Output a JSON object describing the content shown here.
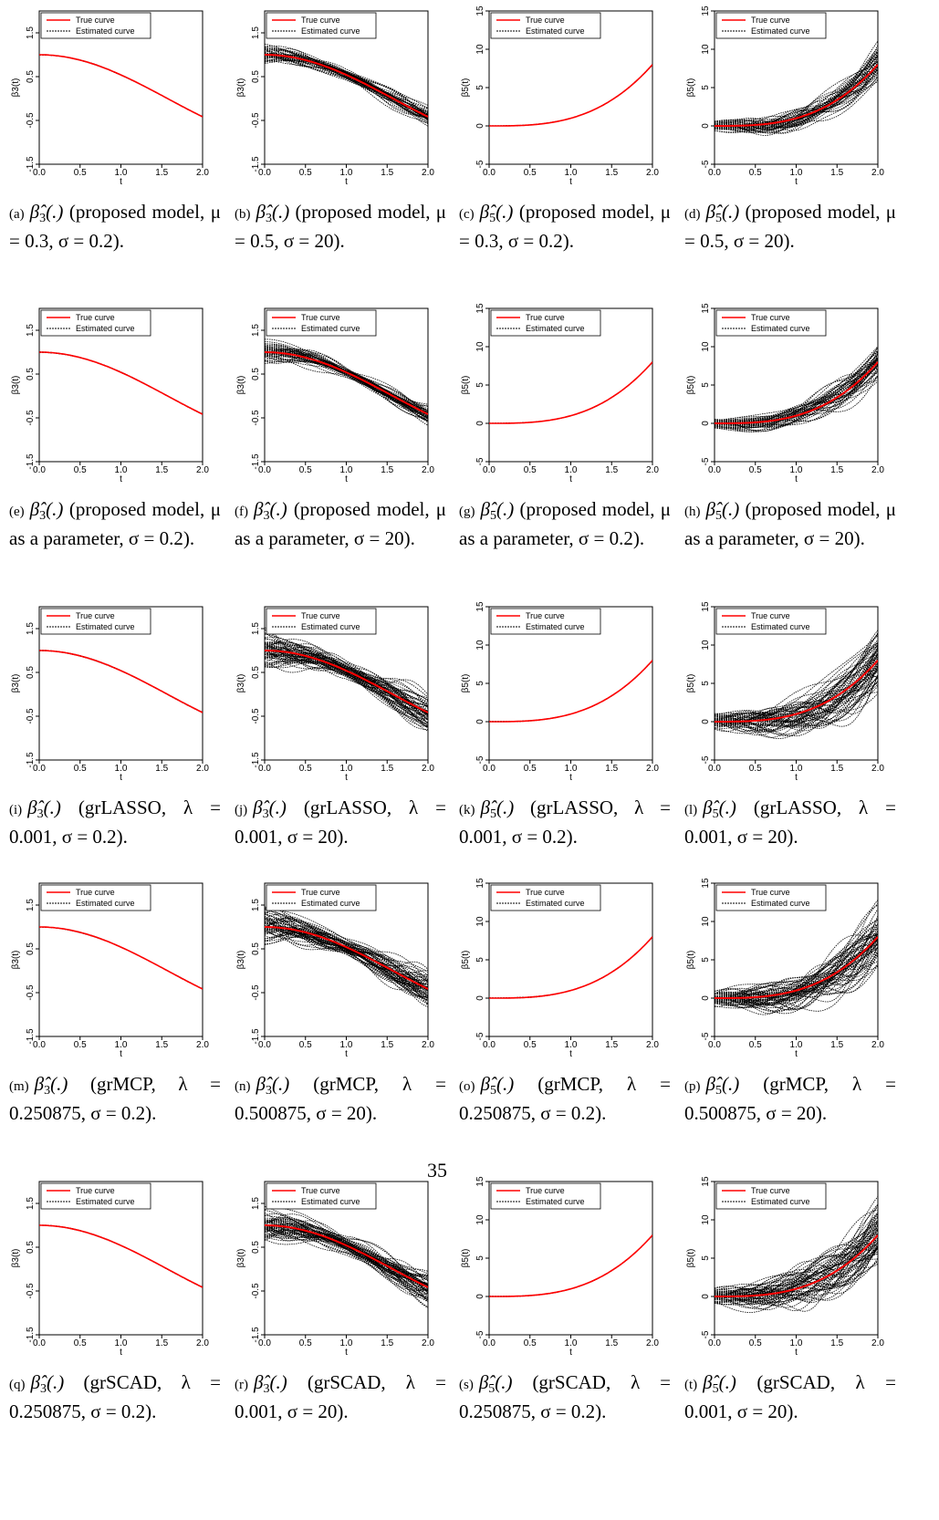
{
  "page_number": "35",
  "legend": {
    "true_label": "True curve",
    "est_label": "Estimated curve",
    "true_color": "#ff0000",
    "est_color": "#000000"
  },
  "axes": {
    "xlabel": "t",
    "xticks": [
      "0.0",
      "0.5",
      "1.0",
      "1.5",
      "2.0"
    ],
    "beta3_ylabel": "β3(t)",
    "beta3_yticks": [
      "-1.5",
      "-0.5",
      "0.5",
      "1.5"
    ],
    "beta5_ylabel": "β5(t)",
    "beta5_yticks": [
      "-5",
      "0",
      "5",
      "10",
      "15"
    ]
  },
  "panels": [
    {
      "label": "(a)",
      "beta": "3",
      "rest": "(proposed model, μ = 0.3, σ = 0.2)."
    },
    {
      "label": "(b)",
      "beta": "3",
      "rest": "(proposed model, μ = 0.5, σ = 20)."
    },
    {
      "label": "(c)",
      "beta": "5",
      "rest": "(proposed model, μ = 0.3, σ = 0.2)."
    },
    {
      "label": "(d)",
      "beta": "5",
      "rest": "(proposed model, μ = 0.5, σ = 20)."
    },
    {
      "label": "(e)",
      "beta": "3",
      "rest": "(proposed model, μ as a parameter, σ = 0.2)."
    },
    {
      "label": "(f)",
      "beta": "3",
      "rest": "(proposed model, μ as a parameter, σ = 20)."
    },
    {
      "label": "(g)",
      "beta": "5",
      "rest": "(proposed model, μ as a parameter, σ = 0.2)."
    },
    {
      "label": "(h)",
      "beta": "5",
      "rest": "(proposed model, μ as a parameter, σ = 20)."
    },
    {
      "label": "(i)",
      "beta": "3",
      "rest": "(grLASSO, λ = 0.001, σ = 0.2)."
    },
    {
      "label": "(j)",
      "beta": "3",
      "rest": "(grLASSO, λ = 0.001, σ = 20)."
    },
    {
      "label": "(k)",
      "beta": "5",
      "rest": "(grLASSO, λ = 0.001, σ = 0.2)."
    },
    {
      "label": "(l)",
      "beta": "5",
      "rest": "(grLASSO, λ = 0.001, σ = 20)."
    },
    {
      "label": "(m)",
      "beta": "3",
      "rest": "(grMCP, λ = 0.250875, σ = 0.2)."
    },
    {
      "label": "(n)",
      "beta": "3",
      "rest": "(grMCP, λ = 0.500875, σ = 20)."
    },
    {
      "label": "(o)",
      "beta": "5",
      "rest": "(grMCP, λ = 0.250875, σ = 0.2)."
    },
    {
      "label": "(p)",
      "beta": "5",
      "rest": "(grMCP, λ = 0.500875, σ = 20)."
    },
    {
      "label": "(q)",
      "beta": "3",
      "rest": "(grSCAD, λ = 0.250875, σ = 0.2)."
    },
    {
      "label": "(r)",
      "beta": "3",
      "rest": "(grSCAD, λ = 0.001, σ = 20)."
    },
    {
      "label": "(s)",
      "beta": "5",
      "rest": "(grSCAD, λ = 0.250875, σ = 0.2)."
    },
    {
      "label": "(t)",
      "beta": "5",
      "rest": "(grSCAD, λ = 0.001, σ = 20)."
    }
  ],
  "chart_data": [
    {
      "type": "line",
      "title": "",
      "xlabel": "t",
      "ylabel": "β3(t)",
      "xlim": [
        0,
        2
      ],
      "ylim": [
        -1.5,
        2.0
      ],
      "true_function": "cos(t)",
      "estimate_spread": "small",
      "series": [
        {
          "name": "True curve",
          "x": [
            0,
            0.25,
            0.5,
            0.75,
            1.0,
            1.25,
            1.5,
            1.75,
            2.0
          ],
          "values": [
            1.0,
            0.97,
            0.88,
            0.73,
            0.54,
            0.32,
            0.07,
            -0.18,
            -0.42
          ]
        },
        {
          "name": "Estimated curve"
        }
      ]
    },
    {
      "type": "line",
      "title": "",
      "xlabel": "t",
      "ylabel": "β3(t)",
      "xlim": [
        0,
        2
      ],
      "ylim": [
        -1.5,
        2.0
      ],
      "true_function": "cos(t)",
      "estimate_spread": "medium",
      "series": [
        {
          "name": "True curve"
        },
        {
          "name": "Estimated curve"
        }
      ]
    },
    {
      "type": "line",
      "title": "",
      "xlabel": "t",
      "ylabel": "β5(t)",
      "xlim": [
        0,
        2
      ],
      "ylim": [
        -5,
        15
      ],
      "true_function": "t^3",
      "estimate_spread": "small",
      "series": [
        {
          "name": "True curve",
          "x": [
            0,
            0.5,
            1.0,
            1.5,
            2.0
          ],
          "values": [
            0,
            0.125,
            1,
            3.375,
            8
          ]
        },
        {
          "name": "Estimated curve"
        }
      ]
    },
    {
      "type": "line",
      "title": "",
      "xlabel": "t",
      "ylabel": "β5(t)",
      "xlim": [
        0,
        2
      ],
      "ylim": [
        -5,
        15
      ],
      "true_function": "t^3",
      "estimate_spread": "medium",
      "series": [
        {
          "name": "True curve"
        },
        {
          "name": "Estimated curve"
        }
      ]
    },
    {
      "type": "line",
      "title": "",
      "xlabel": "t",
      "ylabel": "β3(t)",
      "xlim": [
        0,
        2
      ],
      "ylim": [
        -1.5,
        2.0
      ],
      "true_function": "cos(t)",
      "estimate_spread": "small",
      "series": [
        {
          "name": "True curve"
        },
        {
          "name": "Estimated curve"
        }
      ]
    },
    {
      "type": "line",
      "title": "",
      "xlabel": "t",
      "ylabel": "β3(t)",
      "xlim": [
        0,
        2
      ],
      "ylim": [
        -1.5,
        2.0
      ],
      "true_function": "cos(t)",
      "estimate_spread": "medium",
      "series": [
        {
          "name": "True curve"
        },
        {
          "name": "Estimated curve"
        }
      ]
    },
    {
      "type": "line",
      "title": "",
      "xlabel": "t",
      "ylabel": "β5(t)",
      "xlim": [
        0,
        2
      ],
      "ylim": [
        -5,
        15
      ],
      "true_function": "t^3",
      "estimate_spread": "small",
      "series": [
        {
          "name": "True curve"
        },
        {
          "name": "Estimated curve"
        }
      ]
    },
    {
      "type": "line",
      "title": "",
      "xlabel": "t",
      "ylabel": "β5(t)",
      "xlim": [
        0,
        2
      ],
      "ylim": [
        -5,
        15
      ],
      "true_function": "t^3",
      "estimate_spread": "medium",
      "series": [
        {
          "name": "True curve"
        },
        {
          "name": "Estimated curve"
        }
      ]
    },
    {
      "type": "line",
      "title": "",
      "xlabel": "t",
      "ylabel": "β3(t)",
      "xlim": [
        0,
        2
      ],
      "ylim": [
        -1.5,
        2.0
      ],
      "true_function": "cos(t)",
      "estimate_spread": "small",
      "series": [
        {
          "name": "True curve"
        },
        {
          "name": "Estimated curve"
        }
      ]
    },
    {
      "type": "line",
      "title": "",
      "xlabel": "t",
      "ylabel": "β3(t)",
      "xlim": [
        0,
        2
      ],
      "ylim": [
        -1.5,
        2.0
      ],
      "true_function": "cos(t)",
      "estimate_spread": "large",
      "series": [
        {
          "name": "True curve"
        },
        {
          "name": "Estimated curve"
        }
      ]
    },
    {
      "type": "line",
      "title": "",
      "xlabel": "t",
      "ylabel": "β5(t)",
      "xlim": [
        0,
        2
      ],
      "ylim": [
        -5,
        15
      ],
      "true_function": "t^3",
      "estimate_spread": "small",
      "series": [
        {
          "name": "True curve"
        },
        {
          "name": "Estimated curve"
        }
      ]
    },
    {
      "type": "line",
      "title": "",
      "xlabel": "t",
      "ylabel": "β5(t)",
      "xlim": [
        0,
        2
      ],
      "ylim": [
        -5,
        15
      ],
      "true_function": "t^3",
      "estimate_spread": "large",
      "series": [
        {
          "name": "True curve"
        },
        {
          "name": "Estimated curve"
        }
      ]
    },
    {
      "type": "line",
      "title": "",
      "xlabel": "t",
      "ylabel": "β3(t)",
      "xlim": [
        0,
        2
      ],
      "ylim": [
        -1.5,
        2.0
      ],
      "true_function": "cos(t)",
      "estimate_spread": "small",
      "series": [
        {
          "name": "True curve"
        },
        {
          "name": "Estimated curve"
        }
      ]
    },
    {
      "type": "line",
      "title": "",
      "xlabel": "t",
      "ylabel": "β3(t)",
      "xlim": [
        0,
        2
      ],
      "ylim": [
        -1.5,
        2.0
      ],
      "true_function": "cos(t)",
      "estimate_spread": "large",
      "series": [
        {
          "name": "True curve"
        },
        {
          "name": "Estimated curve"
        }
      ]
    },
    {
      "type": "line",
      "title": "",
      "xlabel": "t",
      "ylabel": "β5(t)",
      "xlim": [
        0,
        2
      ],
      "ylim": [
        -5,
        15
      ],
      "true_function": "t^3",
      "estimate_spread": "small",
      "series": [
        {
          "name": "True curve"
        },
        {
          "name": "Estimated curve"
        }
      ]
    },
    {
      "type": "line",
      "title": "",
      "xlabel": "t",
      "ylabel": "β5(t)",
      "xlim": [
        0,
        2
      ],
      "ylim": [
        -5,
        15
      ],
      "true_function": "t^3",
      "estimate_spread": "large",
      "series": [
        {
          "name": "True curve"
        },
        {
          "name": "Estimated curve"
        }
      ]
    },
    {
      "type": "line",
      "title": "",
      "xlabel": "t",
      "ylabel": "β3(t)",
      "xlim": [
        0,
        2
      ],
      "ylim": [
        -1.5,
        2.0
      ],
      "true_function": "cos(t)",
      "estimate_spread": "small",
      "series": [
        {
          "name": "True curve"
        },
        {
          "name": "Estimated curve"
        }
      ]
    },
    {
      "type": "line",
      "title": "",
      "xlabel": "t",
      "ylabel": "β3(t)",
      "xlim": [
        0,
        2
      ],
      "ylim": [
        -1.5,
        2.0
      ],
      "true_function": "cos(t)",
      "estimate_spread": "large",
      "series": [
        {
          "name": "True curve"
        },
        {
          "name": "Estimated curve"
        }
      ]
    },
    {
      "type": "line",
      "title": "",
      "xlabel": "t",
      "ylabel": "β5(t)",
      "xlim": [
        0,
        2
      ],
      "ylim": [
        -5,
        15
      ],
      "true_function": "t^3",
      "estimate_spread": "small",
      "series": [
        {
          "name": "True curve"
        },
        {
          "name": "Estimated curve"
        }
      ]
    },
    {
      "type": "line",
      "title": "",
      "xlabel": "t",
      "ylabel": "β5(t)",
      "xlim": [
        0,
        2
      ],
      "ylim": [
        -5,
        15
      ],
      "true_function": "t^3",
      "estimate_spread": "large",
      "series": [
        {
          "name": "True curve"
        },
        {
          "name": "Estimated curve"
        }
      ]
    }
  ]
}
